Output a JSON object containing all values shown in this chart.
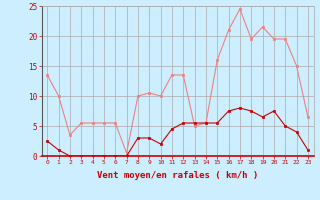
{
  "hours": [
    0,
    1,
    2,
    3,
    4,
    5,
    6,
    7,
    8,
    9,
    10,
    11,
    12,
    13,
    14,
    15,
    16,
    17,
    18,
    19,
    20,
    21,
    22,
    23
  ],
  "rafales": [
    13.5,
    10.0,
    3.5,
    5.5,
    5.5,
    5.5,
    5.5,
    0.5,
    10.0,
    10.5,
    10.0,
    13.5,
    13.5,
    5.0,
    5.5,
    16.0,
    21.0,
    24.5,
    19.5,
    21.5,
    19.5,
    19.5,
    15.0,
    6.5
  ],
  "moyen": [
    2.5,
    1.0,
    0.0,
    0.0,
    0.0,
    0.0,
    0.0,
    0.0,
    3.0,
    3.0,
    2.0,
    4.5,
    5.5,
    5.5,
    5.5,
    5.5,
    7.5,
    8.0,
    7.5,
    6.5,
    7.5,
    5.0,
    4.0,
    1.0
  ],
  "rafales_color": "#f08080",
  "moyen_color": "#cc0000",
  "bg_color": "#cceeff",
  "grid_color": "#aaaaaa",
  "axis_color": "#cc0000",
  "xlabel": "Vent moyen/en rafales ( km/h )",
  "ylim": [
    0,
    25
  ],
  "yticks": [
    0,
    5,
    10,
    15,
    20,
    25
  ]
}
